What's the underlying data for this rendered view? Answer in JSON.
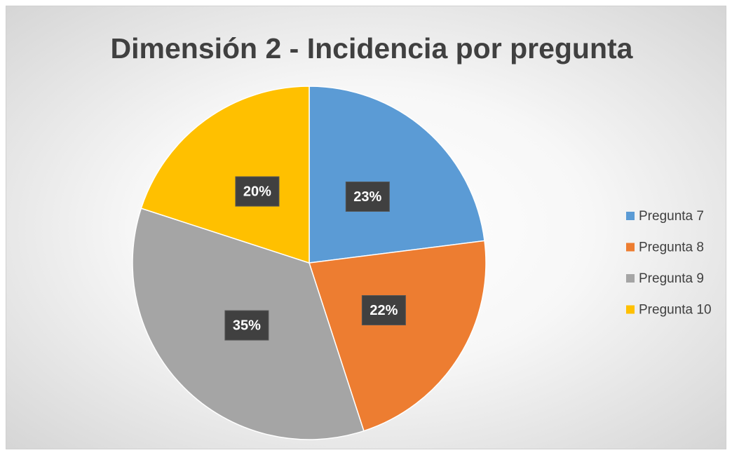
{
  "chart_data": {
    "type": "pie",
    "title": "Dimensión 2 - Incidencia por pregunta",
    "categories": [
      "Pregunta 7",
      "Pregunta 8",
      "Pregunta 9",
      "Pregunta 10"
    ],
    "values": [
      23,
      22,
      35,
      20
    ],
    "value_labels": [
      "23%",
      "22%",
      "35%",
      "20%"
    ],
    "colors": [
      "#5b9bd5",
      "#ed7d31",
      "#a5a5a5",
      "#ffc000"
    ],
    "legend": "right"
  }
}
